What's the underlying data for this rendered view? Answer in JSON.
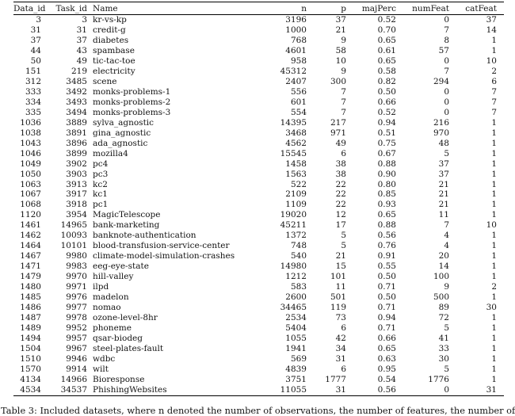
{
  "table": {
    "columns": [
      "Data_id",
      "Task_id",
      "Name",
      "n",
      "p",
      "majPerc",
      "numFeat",
      "catFeat"
    ],
    "rows": [
      [
        "3",
        "3",
        "kr-vs-kp",
        "3196",
        "37",
        "0.52",
        "0",
        "37"
      ],
      [
        "31",
        "31",
        "credit-g",
        "1000",
        "21",
        "0.70",
        "7",
        "14"
      ],
      [
        "37",
        "37",
        "diabetes",
        "768",
        "9",
        "0.65",
        "8",
        "1"
      ],
      [
        "44",
        "43",
        "spambase",
        "4601",
        "58",
        "0.61",
        "57",
        "1"
      ],
      [
        "50",
        "49",
        "tic-tac-toe",
        "958",
        "10",
        "0.65",
        "0",
        "10"
      ],
      [
        "151",
        "219",
        "electricity",
        "45312",
        "9",
        "0.58",
        "7",
        "2"
      ],
      [
        "312",
        "3485",
        "scene",
        "2407",
        "300",
        "0.82",
        "294",
        "6"
      ],
      [
        "333",
        "3492",
        "monks-problems-1",
        "556",
        "7",
        "0.50",
        "0",
        "7"
      ],
      [
        "334",
        "3493",
        "monks-problems-2",
        "601",
        "7",
        "0.66",
        "0",
        "7"
      ],
      [
        "335",
        "3494",
        "monks-problems-3",
        "554",
        "7",
        "0.52",
        "0",
        "7"
      ],
      [
        "1036",
        "3889",
        "sylva_agnostic",
        "14395",
        "217",
        "0.94",
        "216",
        "1"
      ],
      [
        "1038",
        "3891",
        "gina_agnostic",
        "3468",
        "971",
        "0.51",
        "970",
        "1"
      ],
      [
        "1043",
        "3896",
        "ada_agnostic",
        "4562",
        "49",
        "0.75",
        "48",
        "1"
      ],
      [
        "1046",
        "3899",
        "mozilla4",
        "15545",
        "6",
        "0.67",
        "5",
        "1"
      ],
      [
        "1049",
        "3902",
        "pc4",
        "1458",
        "38",
        "0.88",
        "37",
        "1"
      ],
      [
        "1050",
        "3903",
        "pc3",
        "1563",
        "38",
        "0.90",
        "37",
        "1"
      ],
      [
        "1063",
        "3913",
        "kc2",
        "522",
        "22",
        "0.80",
        "21",
        "1"
      ],
      [
        "1067",
        "3917",
        "kc1",
        "2109",
        "22",
        "0.85",
        "21",
        "1"
      ],
      [
        "1068",
        "3918",
        "pc1",
        "1109",
        "22",
        "0.93",
        "21",
        "1"
      ],
      [
        "1120",
        "3954",
        "MagicTelescope",
        "19020",
        "12",
        "0.65",
        "11",
        "1"
      ],
      [
        "1461",
        "14965",
        "bank-marketing",
        "45211",
        "17",
        "0.88",
        "7",
        "10"
      ],
      [
        "1462",
        "10093",
        "banknote-authentication",
        "1372",
        "5",
        "0.56",
        "4",
        "1"
      ],
      [
        "1464",
        "10101",
        "blood-transfusion-service-center",
        "748",
        "5",
        "0.76",
        "4",
        "1"
      ],
      [
        "1467",
        "9980",
        "climate-model-simulation-crashes",
        "540",
        "21",
        "0.91",
        "20",
        "1"
      ],
      [
        "1471",
        "9983",
        "eeg-eye-state",
        "14980",
        "15",
        "0.55",
        "14",
        "1"
      ],
      [
        "1479",
        "9970",
        "hill-valley",
        "1212",
        "101",
        "0.50",
        "100",
        "1"
      ],
      [
        "1480",
        "9971",
        "ilpd",
        "583",
        "11",
        "0.71",
        "9",
        "2"
      ],
      [
        "1485",
        "9976",
        "madelon",
        "2600",
        "501",
        "0.50",
        "500",
        "1"
      ],
      [
        "1486",
        "9977",
        "nomao",
        "34465",
        "119",
        "0.71",
        "89",
        "30"
      ],
      [
        "1487",
        "9978",
        "ozone-level-8hr",
        "2534",
        "73",
        "0.94",
        "72",
        "1"
      ],
      [
        "1489",
        "9952",
        "phoneme",
        "5404",
        "6",
        "0.71",
        "5",
        "1"
      ],
      [
        "1494",
        "9957",
        "qsar-biodeg",
        "1055",
        "42",
        "0.66",
        "41",
        "1"
      ],
      [
        "1504",
        "9967",
        "steel-plates-fault",
        "1941",
        "34",
        "0.65",
        "33",
        "1"
      ],
      [
        "1510",
        "9946",
        "wdbc",
        "569",
        "31",
        "0.63",
        "30",
        "1"
      ],
      [
        "1570",
        "9914",
        "wilt",
        "4839",
        "6",
        "0.95",
        "5",
        "1"
      ],
      [
        "4134",
        "14966",
        "Bioresponse",
        "3751",
        "1777",
        "0.54",
        "1776",
        "1"
      ],
      [
        "4534",
        "34537",
        "PhishingWebsites",
        "11055",
        "31",
        "0.56",
        "0",
        "31"
      ]
    ]
  },
  "caption": "Table 3: Included datasets, where n denoted the number of observations, the number of features, the number of"
}
